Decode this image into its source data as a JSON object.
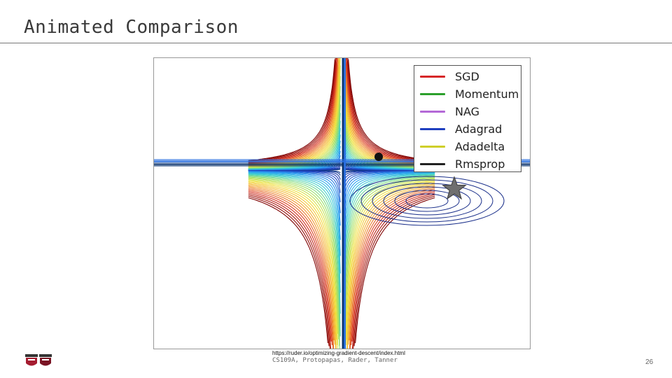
{
  "slide": {
    "title": "Animated Comparison",
    "source_url": "https://ruder.io/optimizing-gradient-descent/index.html",
    "credit": "CS109A, Protopapas, Rader, Tanner",
    "page_number": "26"
  },
  "chart_data": {
    "type": "contour",
    "description_visible_elements": [
      "saddle-point contour plot",
      "start point marker",
      "minimum star marker"
    ],
    "legend": {
      "placement": "top-right",
      "entries": [
        {
          "name": "SGD",
          "color": "#d62728"
        },
        {
          "name": "Momentum",
          "color": "#2ca02c"
        },
        {
          "name": "NAG",
          "color": "#b469d6"
        },
        {
          "name": "Adagrad",
          "color": "#1f3fbf"
        },
        {
          "name": "Adadelta",
          "color": "#cfcf2a"
        },
        {
          "name": "Rmsprop",
          "color": "#222222"
        }
      ]
    },
    "colormap": [
      "#08306b",
      "#2040c0",
      "#2a9df4",
      "#3fd0d0",
      "#9be06a",
      "#f2e23a",
      "#f4a431",
      "#d7301f",
      "#7f0000"
    ],
    "markers": {
      "start": {
        "shape": "circle",
        "color": "#111111"
      },
      "goal": {
        "shape": "star",
        "color": "#6f6f6f"
      }
    },
    "grid": false
  },
  "logo": {
    "colors": [
      "#a51c30",
      "#7a1424"
    ]
  }
}
